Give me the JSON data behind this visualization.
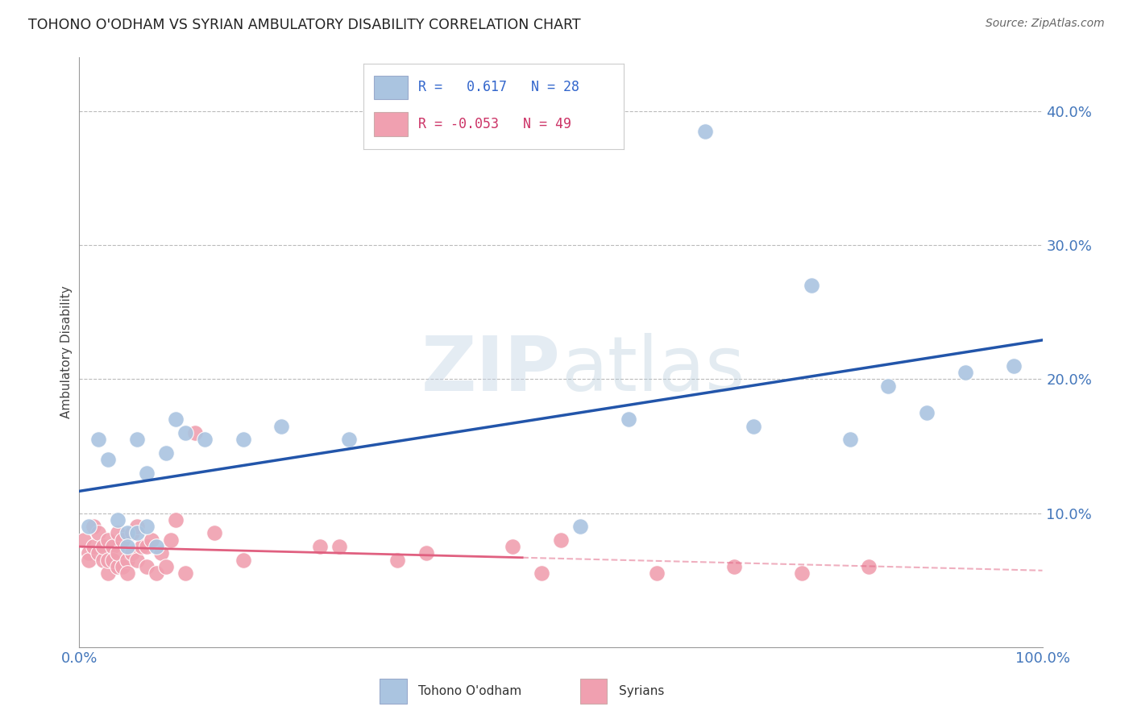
{
  "title": "TOHONO O'ODHAM VS SYRIAN AMBULATORY DISABILITY CORRELATION CHART",
  "source": "Source: ZipAtlas.com",
  "ylabel": "Ambulatory Disability",
  "xlim": [
    0,
    1.0
  ],
  "ylim": [
    0,
    0.44
  ],
  "yticks": [
    0.0,
    0.1,
    0.2,
    0.3,
    0.4
  ],
  "xticks": [
    0.0,
    0.25,
    0.5,
    0.75,
    1.0
  ],
  "blue_R": 0.617,
  "blue_N": 28,
  "pink_R": -0.053,
  "pink_N": 49,
  "blue_color": "#aac4e0",
  "pink_color": "#f0a0b0",
  "blue_line_color": "#2255aa",
  "pink_line_color": "#e06080",
  "tohono_x": [
    0.01,
    0.02,
    0.03,
    0.04,
    0.05,
    0.05,
    0.06,
    0.06,
    0.07,
    0.07,
    0.08,
    0.09,
    0.1,
    0.11,
    0.13,
    0.17,
    0.21,
    0.28,
    0.52,
    0.57,
    0.65,
    0.7,
    0.76,
    0.8,
    0.84,
    0.88,
    0.92,
    0.97
  ],
  "tohono_y": [
    0.09,
    0.155,
    0.14,
    0.095,
    0.085,
    0.075,
    0.085,
    0.155,
    0.13,
    0.09,
    0.075,
    0.145,
    0.17,
    0.16,
    0.155,
    0.155,
    0.165,
    0.155,
    0.09,
    0.17,
    0.385,
    0.165,
    0.27,
    0.155,
    0.195,
    0.175,
    0.205,
    0.21
  ],
  "syrian_x": [
    0.005,
    0.01,
    0.01,
    0.015,
    0.015,
    0.02,
    0.02,
    0.025,
    0.025,
    0.03,
    0.03,
    0.03,
    0.035,
    0.035,
    0.04,
    0.04,
    0.04,
    0.045,
    0.045,
    0.05,
    0.05,
    0.055,
    0.055,
    0.06,
    0.06,
    0.065,
    0.07,
    0.07,
    0.075,
    0.08,
    0.085,
    0.09,
    0.095,
    0.1,
    0.11,
    0.12,
    0.14,
    0.17,
    0.25,
    0.27,
    0.33,
    0.36,
    0.45,
    0.48,
    0.5,
    0.6,
    0.68,
    0.75,
    0.82
  ],
  "syrian_y": [
    0.08,
    0.07,
    0.065,
    0.09,
    0.075,
    0.085,
    0.07,
    0.065,
    0.075,
    0.055,
    0.065,
    0.08,
    0.075,
    0.065,
    0.06,
    0.07,
    0.085,
    0.06,
    0.08,
    0.065,
    0.055,
    0.07,
    0.085,
    0.065,
    0.09,
    0.075,
    0.06,
    0.075,
    0.08,
    0.055,
    0.07,
    0.06,
    0.08,
    0.095,
    0.055,
    0.16,
    0.085,
    0.065,
    0.075,
    0.075,
    0.065,
    0.07,
    0.075,
    0.055,
    0.08,
    0.055,
    0.06,
    0.055,
    0.06
  ]
}
